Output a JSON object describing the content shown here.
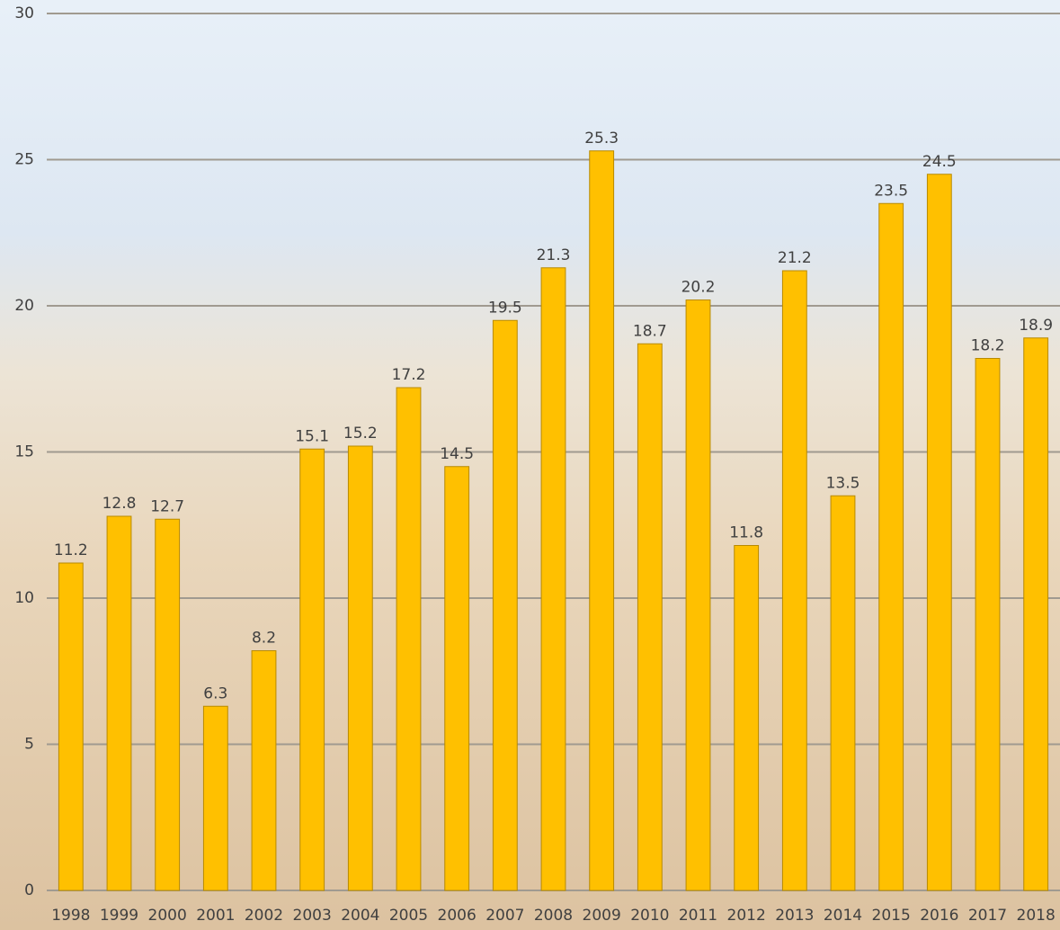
{
  "chart_data": {
    "type": "bar",
    "categories": [
      "1998",
      "1999",
      "2000",
      "2001",
      "2002",
      "2003",
      "2004",
      "2005",
      "2006",
      "2007",
      "2008",
      "2009",
      "2010",
      "2011",
      "2012",
      "2013",
      "2014",
      "2015",
      "2016",
      "2017",
      "2018"
    ],
    "values": [
      11.2,
      12.8,
      12.7,
      6.3,
      8.2,
      15.1,
      15.2,
      17.2,
      14.5,
      19.5,
      21.3,
      25.3,
      18.7,
      20.2,
      11.8,
      21.2,
      13.5,
      23.5,
      24.5,
      18.2,
      18.9
    ],
    "color": "#ffc000",
    "ylim": [
      0,
      30
    ],
    "yticks": [
      0,
      5,
      10,
      15,
      20,
      25,
      30
    ],
    "grid": true
  }
}
